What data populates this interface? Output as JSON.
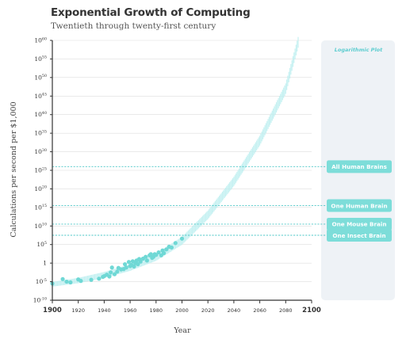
{
  "chart_data": {
    "type": "scatter",
    "title": "Exponential Growth of Computing",
    "subtitle": "Twentieth through twenty-first century",
    "xlabel": "Year",
    "ylabel": "Calculations per second per $1,000",
    "xlim": [
      1900,
      2100
    ],
    "ylim": [
      -10,
      60
    ],
    "y_scale": "log",
    "grid": true,
    "x_ticks": [
      1900,
      1920,
      1940,
      1960,
      1980,
      2000,
      2020,
      2040,
      2060,
      2080,
      2100
    ],
    "y_ticks": [
      {
        "value": -10,
        "base": "10",
        "exp": "-10"
      },
      {
        "value": -5,
        "base": "10",
        "exp": "-5"
      },
      {
        "value": 0,
        "base": "1",
        "exp": ""
      },
      {
        "value": 5,
        "base": "10",
        "exp": "5"
      },
      {
        "value": 10,
        "base": "10",
        "exp": "10"
      },
      {
        "value": 15,
        "base": "10",
        "exp": "15"
      },
      {
        "value": 20,
        "base": "10",
        "exp": "20"
      },
      {
        "value": 25,
        "base": "10",
        "exp": "25"
      },
      {
        "value": 30,
        "base": "10",
        "exp": "30"
      },
      {
        "value": 35,
        "base": "10",
        "exp": "35"
      },
      {
        "value": 40,
        "base": "10",
        "exp": "40"
      },
      {
        "value": 45,
        "base": "10",
        "exp": "45"
      },
      {
        "value": 50,
        "base": "10",
        "exp": "50"
      },
      {
        "value": 55,
        "base": "10",
        "exp": "55"
      },
      {
        "value": 60,
        "base": "10",
        "exp": "60"
      }
    ],
    "trend": {
      "x": [
        1900,
        1920,
        1940,
        1960,
        1980,
        2000,
        2020,
        2040,
        2060,
        2080,
        2090
      ],
      "y": [
        -5.7,
        -4.7,
        -3.2,
        -1.2,
        1.6,
        6,
        13,
        22,
        33,
        47,
        60
      ]
    },
    "points": {
      "x": [
        1900,
        1908,
        1911,
        1914,
        1920,
        1922,
        1930,
        1936,
        1939,
        1940,
        1942,
        1944,
        1945,
        1946,
        1948,
        1950,
        1951,
        1953,
        1955,
        1956,
        1957,
        1959,
        1960,
        1961,
        1962,
        1963,
        1964,
        1965,
        1966,
        1967,
        1968,
        1970,
        1972,
        1973,
        1975,
        1976,
        1977,
        1978,
        1979,
        1980,
        1982,
        1984,
        1985,
        1986,
        1988,
        1990,
        1992,
        1995,
        2000
      ],
      "y": [
        -5.5,
        -4.3,
        -5,
        -5.2,
        -4.4,
        -4.8,
        -4.5,
        -4.2,
        -3.7,
        -3.5,
        -3.1,
        -3.6,
        -2.5,
        -1.2,
        -3,
        -2.3,
        -1.3,
        -1.7,
        -1.6,
        -0.3,
        -1.2,
        0.3,
        -0.8,
        -0.5,
        0.5,
        -0.9,
        0,
        0.7,
        -0.3,
        1.1,
        0.4,
        1.2,
        1.7,
        0.7,
        2.1,
        2.4,
        1.4,
        1.7,
        2.4,
        2.2,
        2.9,
        2.1,
        3.4,
        2.7,
        3.7,
        4.4,
        4.2,
        5.4,
        6.6
      ]
    },
    "reference_lines": [
      {
        "label": "All Human Brains",
        "y": 26
      },
      {
        "label": "One Human Brain",
        "y": 15.5
      },
      {
        "label": "One Mouse Brain",
        "y": 10.5
      },
      {
        "label": "One Insect Brain",
        "y": 7.5
      }
    ],
    "panel_label": "Logarithmic Plot",
    "colors": {
      "point": "#6fd8d5",
      "trend": "#bdeff0",
      "reference": "#52c8c8",
      "label_fill": "#7dddd9",
      "panel": "#eef2f6",
      "panel_text": "#5ecdd0",
      "axis": "#333333",
      "grid": "#dddddd"
    }
  }
}
